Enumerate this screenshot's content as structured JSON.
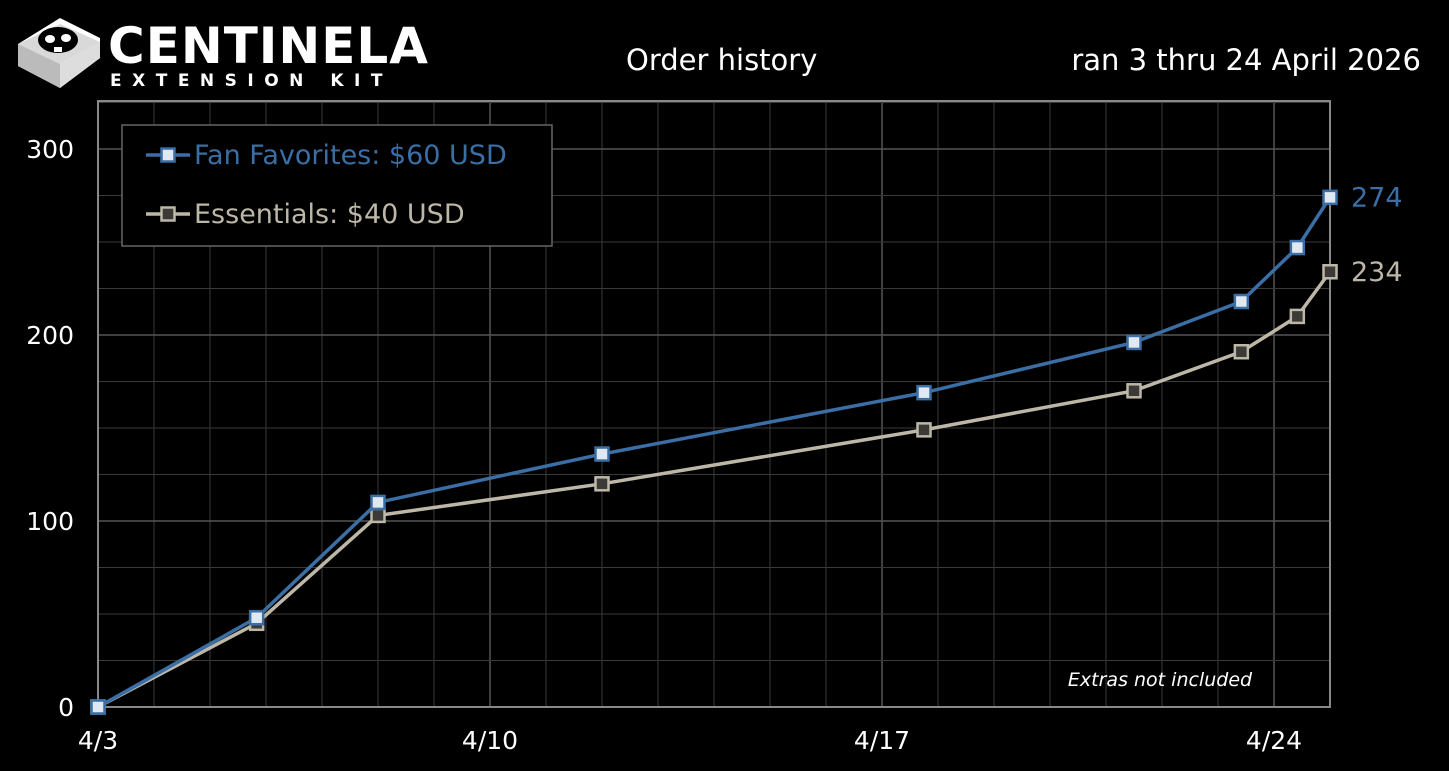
{
  "brand": {
    "title": "CENTINELA",
    "subtitle": "EXTENSION KIT",
    "icon": "keycap-skull-icon"
  },
  "chart_data": {
    "type": "line",
    "title": "Order history",
    "subtitle": "ran 3 thru 24 April 2026",
    "xlabel": "",
    "ylabel": "",
    "x_range": [
      "2026-04-03",
      "2026-04-25"
    ],
    "ylim": [
      0,
      300
    ],
    "y_ticks": [
      0,
      100,
      200,
      300
    ],
    "x_ticks": [
      {
        "date": "2026-04-03",
        "label": "4/3"
      },
      {
        "date": "2026-04-10",
        "label": "4/10"
      },
      {
        "date": "2026-04-17",
        "label": "4/17"
      },
      {
        "date": "2026-04-24",
        "label": "4/24"
      }
    ],
    "grid": true,
    "legend_position": "top-left",
    "annotation": "Extras not included",
    "series": [
      {
        "name": "Fan Favorites: $60 USD",
        "color": "#3a6ea5",
        "marker_fill": "#e0e8f2",
        "end_label": "274",
        "points": [
          {
            "x": "2026-04-03",
            "y": 0
          },
          {
            "x": "2026-04-05 20:00",
            "y": 48
          },
          {
            "x": "2026-04-08",
            "y": 110
          },
          {
            "x": "2026-04-12",
            "y": 136
          },
          {
            "x": "2026-04-17 18:00",
            "y": 169
          },
          {
            "x": "2026-04-21 12:00",
            "y": 196
          },
          {
            "x": "2026-04-23 10:00",
            "y": 218
          },
          {
            "x": "2026-04-24 10:00",
            "y": 247
          },
          {
            "x": "2026-04-25",
            "y": 274
          }
        ]
      },
      {
        "name": "Essentials: $40 USD",
        "color": "#bdb7a8",
        "marker_fill": "#3c3a36",
        "end_label": "234",
        "points": [
          {
            "x": "2026-04-03",
            "y": 0
          },
          {
            "x": "2026-04-05 20:00",
            "y": 45
          },
          {
            "x": "2026-04-08",
            "y": 103
          },
          {
            "x": "2026-04-12",
            "y": 120
          },
          {
            "x": "2026-04-17 18:00",
            "y": 149
          },
          {
            "x": "2026-04-21 12:00",
            "y": 170
          },
          {
            "x": "2026-04-23 10:00",
            "y": 191
          },
          {
            "x": "2026-04-24 10:00",
            "y": 210
          },
          {
            "x": "2026-04-25",
            "y": 234
          }
        ]
      }
    ]
  }
}
